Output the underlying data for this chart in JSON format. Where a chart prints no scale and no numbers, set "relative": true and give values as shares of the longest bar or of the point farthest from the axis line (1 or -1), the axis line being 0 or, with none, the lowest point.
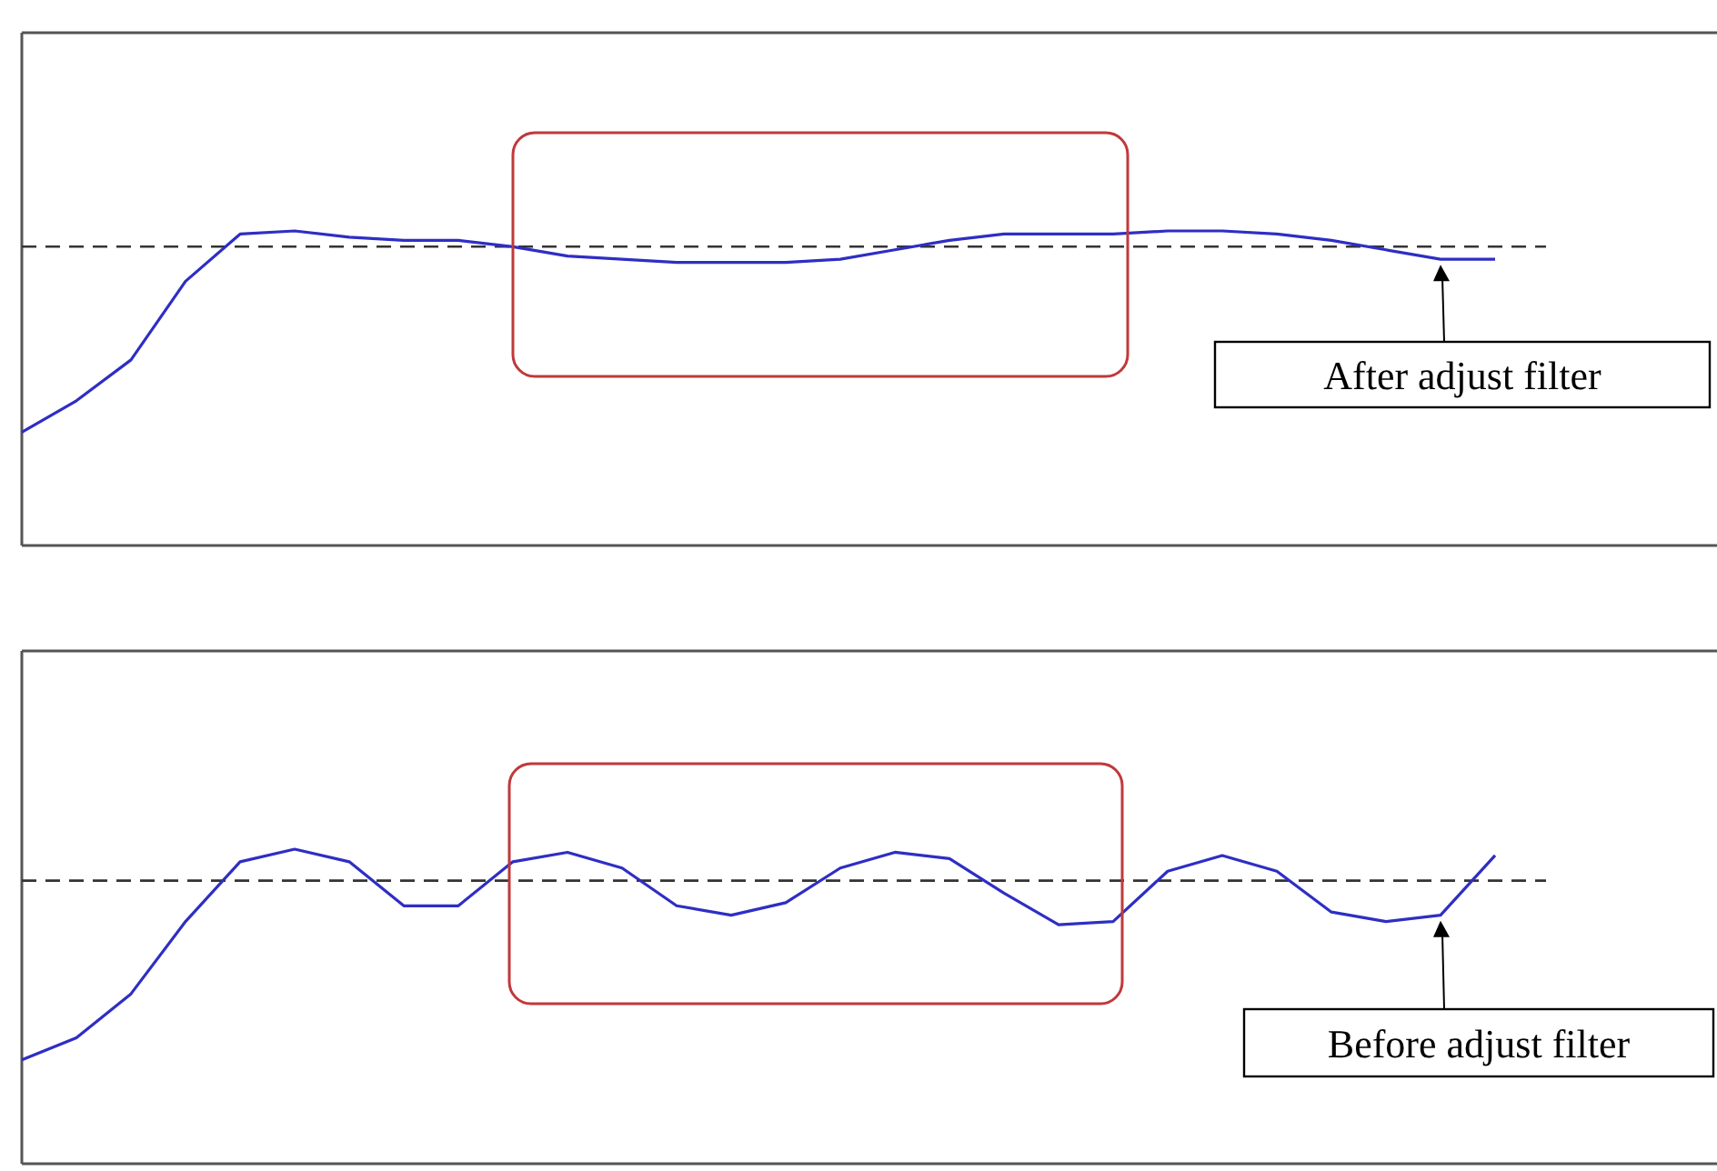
{
  "chart_data": [
    {
      "type": "line",
      "relative": true,
      "categories": [
        null,
        null,
        null,
        null,
        null,
        null,
        null,
        null,
        null,
        null,
        null,
        null,
        null,
        null,
        null,
        null,
        null,
        null,
        null,
        null,
        null,
        null,
        null,
        null,
        null,
        null,
        null,
        null,
        null,
        null,
        null,
        null
      ],
      "series": [
        {
          "color": "#2e2ec4",
          "values": [
            0.36,
            0.46,
            0.59,
            0.84,
            0.99,
            1,
            0.98,
            0.97,
            0.97,
            0.95,
            0.92,
            0.91,
            0.9,
            0.9,
            0.9,
            0.91,
            0.94,
            0.97,
            0.99,
            0.99,
            0.99,
            1,
            1,
            0.99,
            0.97,
            0.94,
            0.91,
            0.91,
            null,
            null,
            null,
            null
          ]
        }
      ],
      "ref_lines": [
        {
          "axis": "y",
          "value": 0.95,
          "line_style": "dashed",
          "color": "#333333"
        }
      ],
      "annotations": [
        "After adjust filter"
      ]
    },
    {
      "type": "line",
      "relative": true,
      "categories": [
        null,
        null,
        null,
        null,
        null,
        null,
        null,
        null,
        null,
        null,
        null,
        null,
        null,
        null,
        null,
        null,
        null,
        null,
        null,
        null,
        null,
        null,
        null,
        null,
        null,
        null,
        null,
        null,
        null,
        null,
        null,
        null
      ],
      "series": [
        {
          "color": "#2e2ec4",
          "values": [
            0.33,
            0.4,
            0.54,
            0.77,
            0.96,
            1,
            0.96,
            0.82,
            0.82,
            0.96,
            0.99,
            0.94,
            0.82,
            0.79,
            0.83,
            0.94,
            0.99,
            0.97,
            0.86,
            0.76,
            0.77,
            0.93,
            0.98,
            0.93,
            0.8,
            0.77,
            0.79,
            0.98,
            null,
            null,
            null,
            null
          ]
        }
      ],
      "ref_lines": [
        {
          "axis": "y",
          "value": 0.9,
          "line_style": "dashed",
          "color": "#333333"
        }
      ],
      "annotations": [
        "Before adjust filter"
      ]
    }
  ]
}
